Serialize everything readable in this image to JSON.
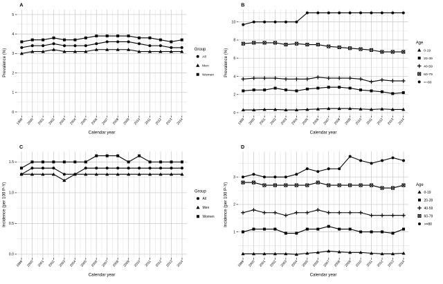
{
  "figure": {
    "background": "#ffffff",
    "panels": [
      "A",
      "B",
      "C",
      "D"
    ]
  },
  "colors": {
    "line": "#000000",
    "text": "#000000",
    "grid_major": "#cccccc",
    "grid_minor": "#e4e4e4",
    "tick": "#333333",
    "background": "#ffffff"
  },
  "chart_data": [
    {
      "panel": "A",
      "type": "line",
      "xlabel": "Calendar year",
      "ylabel": "Prevalence (%)",
      "x": [
        1999,
        2000,
        2001,
        2002,
        2003,
        2004,
        2005,
        2006,
        2007,
        2008,
        2009,
        2010,
        2011,
        2012,
        2013,
        2014
      ],
      "yticks": [
        0,
        1,
        2,
        3,
        4,
        5
      ],
      "ytick_labels": [
        "0",
        "1",
        "2",
        "3",
        "4",
        "5"
      ],
      "ylim": [
        -0.2,
        5.25
      ],
      "minor_step": 0.5,
      "grid": "major+minor",
      "legend_title": "Group",
      "legend_position": "right",
      "series": [
        {
          "name": "All",
          "marker": "circle",
          "values": [
            3.3,
            3.4,
            3.4,
            3.5,
            3.4,
            3.4,
            3.4,
            3.5,
            3.6,
            3.6,
            3.6,
            3.5,
            3.4,
            3.4,
            3.3,
            3.3
          ]
        },
        {
          "name": "Men",
          "marker": "triangle",
          "values": [
            3.0,
            3.1,
            3.1,
            3.2,
            3.1,
            3.1,
            3.1,
            3.2,
            3.2,
            3.2,
            3.2,
            3.1,
            3.1,
            3.1,
            3.1,
            3.1
          ]
        },
        {
          "name": "Women",
          "marker": "square",
          "values": [
            3.6,
            3.7,
            3.7,
            3.8,
            3.7,
            3.7,
            3.8,
            3.9,
            3.9,
            3.9,
            3.9,
            3.8,
            3.8,
            3.7,
            3.6,
            3.7
          ]
        }
      ]
    },
    {
      "panel": "B",
      "type": "line",
      "xlabel": "Calendar year",
      "ylabel": "Prevalence (%)",
      "x": [
        1999,
        2000,
        2001,
        2002,
        2003,
        2004,
        2005,
        2006,
        2007,
        2008,
        2009,
        2010,
        2011,
        2012,
        2013,
        2014
      ],
      "yticks": [
        0,
        2,
        4,
        6,
        8,
        10
      ],
      "ytick_labels": [
        "0",
        "2",
        "4",
        "6",
        "8",
        "10"
      ],
      "ylim": [
        -0.35,
        11.35
      ],
      "minor_step": 1,
      "grid": "major+minor",
      "legend_title": "Age",
      "legend_position": "right",
      "series": [
        {
          "name": "0-19",
          "marker": "triangle",
          "values": [
            0.3,
            0.3,
            0.35,
            0.35,
            0.3,
            0.3,
            0.35,
            0.4,
            0.45,
            0.45,
            0.45,
            0.4,
            0.35,
            0.4,
            0.35,
            0.35
          ]
        },
        {
          "name": "20-39",
          "marker": "square",
          "values": [
            2.4,
            2.5,
            2.5,
            2.7,
            2.5,
            2.4,
            2.6,
            2.7,
            2.8,
            2.8,
            2.7,
            2.5,
            2.4,
            2.3,
            2.1,
            2.2
          ]
        },
        {
          "name": "40-59",
          "marker": "plus",
          "values": [
            3.7,
            3.8,
            3.8,
            3.8,
            3.7,
            3.7,
            3.7,
            3.9,
            3.8,
            3.8,
            3.8,
            3.7,
            3.4,
            3.6,
            3.5,
            3.5
          ]
        },
        {
          "name": "60-79",
          "marker": "square-cross",
          "values": [
            7.6,
            7.7,
            7.7,
            7.7,
            7.5,
            7.6,
            7.5,
            7.5,
            7.3,
            7.2,
            7.1,
            7.0,
            6.9,
            6.7,
            6.7,
            6.7
          ]
        },
        {
          "name": ">=80",
          "marker": "circle",
          "values": [
            9.7,
            10,
            10,
            10,
            10,
            10,
            11,
            11,
            11,
            11,
            11,
            11,
            11,
            11,
            11,
            11
          ]
        }
      ]
    },
    {
      "panel": "C",
      "type": "line",
      "xlabel": "Calendar year",
      "ylabel": "Incidence (per 100 P-Y)",
      "x": [
        1999,
        2000,
        2001,
        2002,
        2003,
        2004,
        2005,
        2006,
        2007,
        2008,
        2009,
        2010,
        2011,
        2012,
        2013,
        2014
      ],
      "yticks": [
        0,
        0.5,
        1.0,
        1.5
      ],
      "ytick_labels": [
        "0.0",
        "0.5",
        "1.0",
        "1.5"
      ],
      "ylim": [
        -0.06,
        1.67
      ],
      "minor_step": 0.25,
      "grid": "major+minor",
      "legend_title": "Group",
      "legend_position": "right",
      "series": [
        {
          "name": "All",
          "marker": "circle",
          "values": [
            1.3,
            1.4,
            1.4,
            1.4,
            1.3,
            1.3,
            1.4,
            1.4,
            1.4,
            1.4,
            1.4,
            1.4,
            1.4,
            1.4,
            1.4,
            1.4
          ]
        },
        {
          "name": "Men",
          "marker": "triangle",
          "values": [
            1.3,
            1.3,
            1.3,
            1.3,
            1.2,
            1.3,
            1.3,
            1.3,
            1.3,
            1.3,
            1.3,
            1.3,
            1.3,
            1.3,
            1.3,
            1.3
          ]
        },
        {
          "name": "Women",
          "marker": "square",
          "values": [
            1.4,
            1.5,
            1.5,
            1.5,
            1.5,
            1.5,
            1.5,
            1.6,
            1.6,
            1.6,
            1.5,
            1.6,
            1.5,
            1.5,
            1.5,
            1.5
          ]
        }
      ]
    },
    {
      "panel": "D",
      "type": "line",
      "xlabel": "Calendar year",
      "ylabel": "Incidence (per 100 P-Y)",
      "x": [
        1999,
        2000,
        2001,
        2002,
        2003,
        2004,
        2005,
        2006,
        2007,
        2008,
        2009,
        2010,
        2011,
        2012,
        2013,
        2014
      ],
      "yticks": [
        1,
        2,
        3
      ],
      "ytick_labels": [
        "1",
        "2",
        "3"
      ],
      "ylim": [
        0.05,
        3.93
      ],
      "minor_step": 0.5,
      "grid": "major+minor",
      "legend_title": "Age",
      "legend_position": "right",
      "series": [
        {
          "name": "0-19",
          "marker": "triangle",
          "values": [
            0.2,
            0.2,
            0.2,
            0.2,
            0.2,
            0.18,
            0.22,
            0.25,
            0.3,
            0.27,
            0.25,
            0.25,
            0.22,
            0.2,
            0.2,
            0.22
          ]
        },
        {
          "name": "20-39",
          "marker": "square",
          "values": [
            1.0,
            1.1,
            1.1,
            1.1,
            0.95,
            0.95,
            1.1,
            1.1,
            1.2,
            1.1,
            1.1,
            1.0,
            1.0,
            1.0,
            0.95,
            1.1
          ]
        },
        {
          "name": "40-59",
          "marker": "plus",
          "values": [
            1.7,
            1.8,
            1.7,
            1.7,
            1.6,
            1.7,
            1.7,
            1.8,
            1.7,
            1.7,
            1.7,
            1.7,
            1.6,
            1.6,
            1.6,
            1.6
          ]
        },
        {
          "name": "60-79",
          "marker": "square-cross",
          "values": [
            2.8,
            2.8,
            2.7,
            2.7,
            2.7,
            2.7,
            2.7,
            2.8,
            2.7,
            2.7,
            2.7,
            2.7,
            2.7,
            2.6,
            2.6,
            2.7
          ]
        },
        {
          "name": ">=80",
          "marker": "circle",
          "values": [
            3.0,
            3.1,
            3.0,
            3.0,
            3.0,
            3.1,
            3.3,
            3.2,
            3.3,
            3.3,
            3.75,
            3.6,
            3.5,
            3.6,
            3.7,
            3.6
          ]
        }
      ]
    }
  ]
}
